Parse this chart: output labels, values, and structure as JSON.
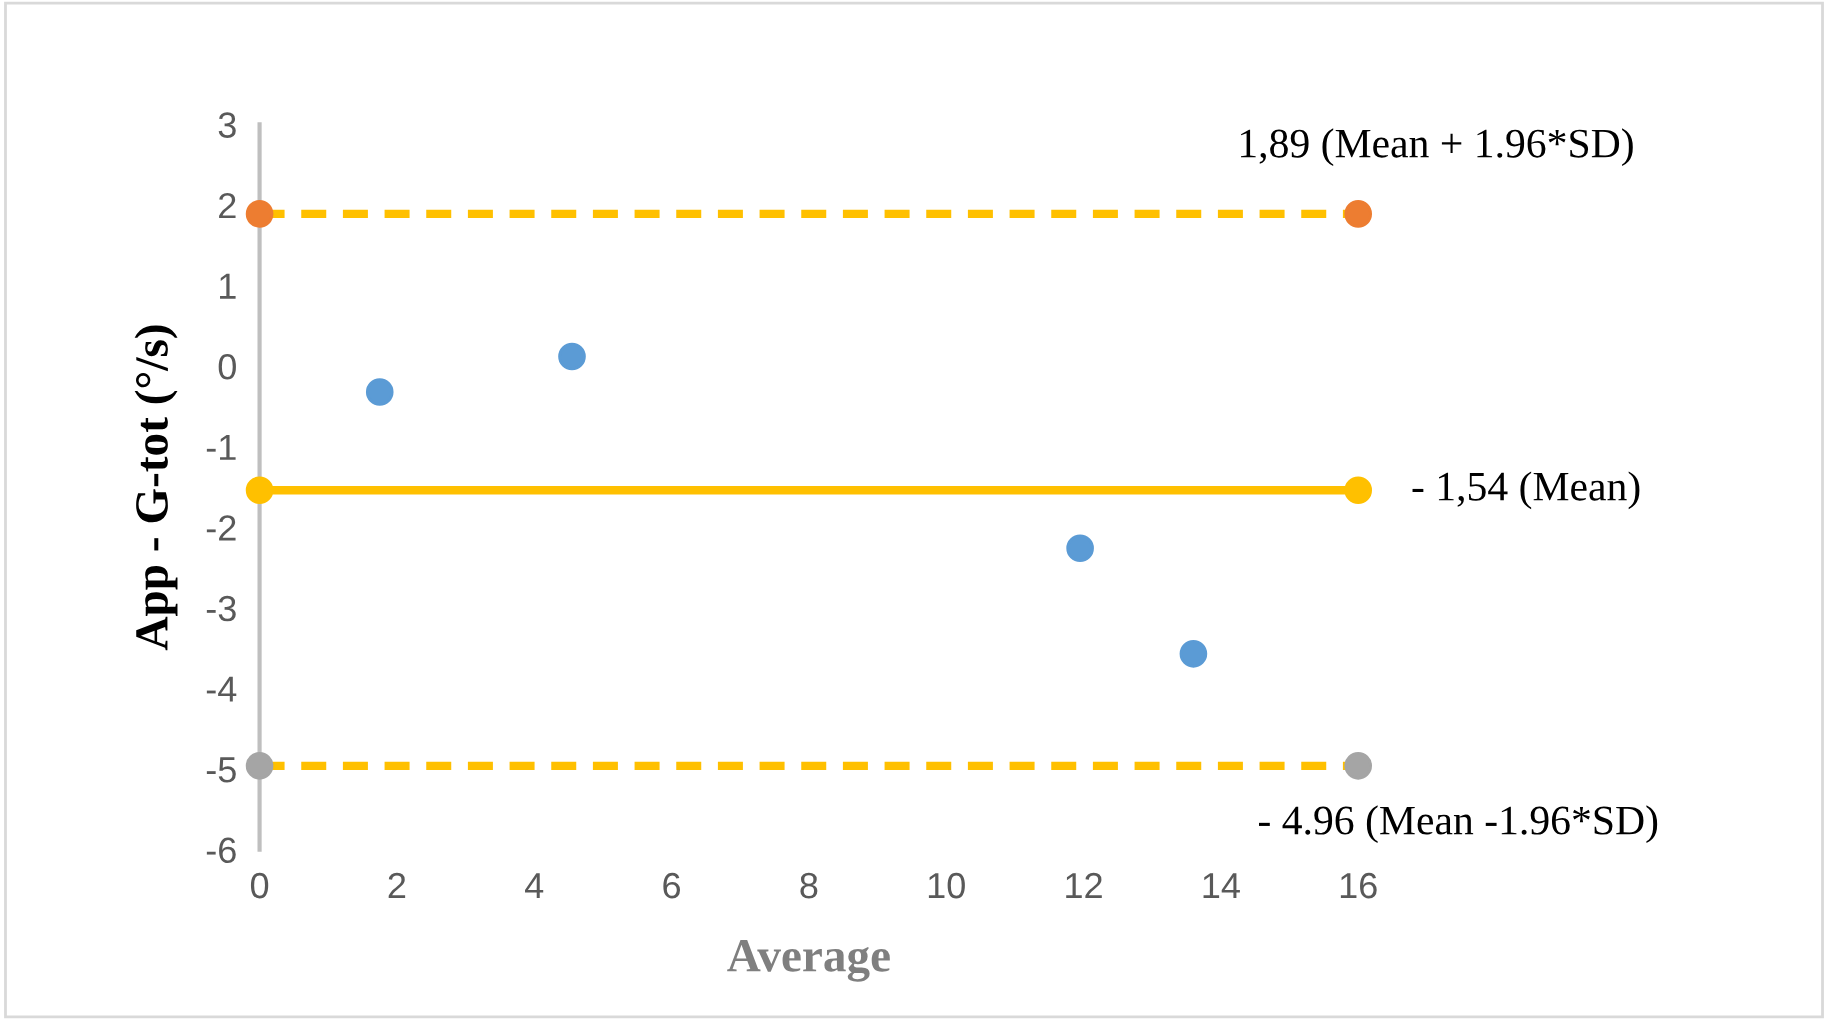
{
  "chart_data": {
    "type": "scatter",
    "xlabel": "Average",
    "ylabel": "App - G-tot (°/s)",
    "xlim": [
      0,
      16
    ],
    "xticks": [
      0,
      2,
      4,
      6,
      8,
      10,
      12,
      14,
      16
    ],
    "ylim": [
      -6,
      3
    ],
    "yticks": [
      -6,
      -5,
      -4,
      -3,
      -2,
      -1,
      0,
      1,
      2,
      3
    ],
    "grid": false,
    "legend": false,
    "marker": "circle",
    "series": [
      {
        "color": "#5b9bd5",
        "x": [
          1.75,
          4.55,
          11.95,
          13.6
        ],
        "values": [
          -0.32,
          0.12,
          -2.26,
          -3.57
        ]
      },
      {
        "type": "line",
        "name": "1,89 (Mean + 1.96*SD)",
        "color": "#ffc000",
        "colors": [
          "#ed7d31",
          "#ed7d31"
        ],
        "line_style": "dashed",
        "x": [
          0,
          16
        ],
        "values": [
          1.89,
          1.89
        ]
      },
      {
        "type": "line",
        "name": "- 1,54 (Mean)",
        "color": "#ffc000",
        "colors": [
          "#ffc000",
          "#ffc000"
        ],
        "line_style": "solid",
        "x": [
          0,
          16
        ],
        "values": [
          -1.54,
          -1.54
        ]
      },
      {
        "type": "line",
        "name": "- 4.96 (Mean -1.96*SD)",
        "color": "#ffc000",
        "colors": [
          "#a5a5a5",
          "#a5a5a5"
        ],
        "line_style": "dashed",
        "x": [
          0,
          16
        ],
        "values": [
          -4.96,
          -4.96
        ]
      }
    ]
  }
}
